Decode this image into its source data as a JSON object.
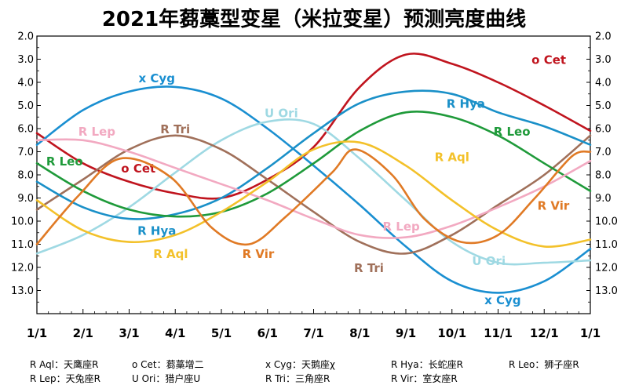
{
  "chart_data": {
    "type": "line",
    "title": "2021年蒭藁型变星（米拉变星）预测亮度曲线",
    "xlabel": "",
    "ylabel": "",
    "ylim": [
      14.0,
      2.0
    ],
    "y_inverted": true,
    "grid": false,
    "x_ticks": [
      "1/1",
      "2/1",
      "3/1",
      "4/1",
      "5/1",
      "6/1",
      "7/1",
      "8/1",
      "9/1",
      "10/1",
      "11/1",
      "12/1",
      "1/1"
    ],
    "y_ticks": [
      "2.0",
      "3.0",
      "4.0",
      "5.0",
      "6.0",
      "7.0",
      "8.0",
      "9.0",
      "10.0",
      "11.0",
      "12.0",
      "13.0"
    ],
    "series": [
      {
        "name": "o Cet",
        "color": "#c0141e",
        "points": [
          [
            0,
            6.2
          ],
          [
            1,
            7.5
          ],
          [
            2,
            8.3
          ],
          [
            3,
            8.8
          ],
          [
            4,
            9.0
          ],
          [
            5,
            8.2
          ],
          [
            6,
            6.8
          ],
          [
            7,
            4.2
          ],
          [
            8,
            2.8
          ],
          [
            9,
            3.2
          ],
          [
            10,
            4.0
          ],
          [
            11,
            5.0
          ],
          [
            12,
            6.1
          ]
        ],
        "labels": [
          [
            11.1,
            3.2
          ],
          [
            2.2,
            7.9
          ]
        ]
      },
      {
        "name": "x Cyg",
        "color": "#1a8fd1",
        "points": [
          [
            0,
            6.7
          ],
          [
            1,
            5.2
          ],
          [
            2,
            4.4
          ],
          [
            3,
            4.2
          ],
          [
            4,
            4.7
          ],
          [
            5,
            6.0
          ],
          [
            6,
            7.6
          ],
          [
            7,
            9.3
          ],
          [
            8,
            11.1
          ],
          [
            9,
            12.6
          ],
          [
            10,
            13.1
          ],
          [
            11,
            12.6
          ],
          [
            12,
            11.2
          ]
        ],
        "labels": [
          [
            2.6,
            4.0
          ],
          [
            10.1,
            13.6
          ]
        ]
      },
      {
        "name": "U Ori",
        "color": "#9fd9e3",
        "points": [
          [
            0,
            11.4
          ],
          [
            1,
            10.6
          ],
          [
            2,
            9.4
          ],
          [
            3,
            7.9
          ],
          [
            4,
            6.5
          ],
          [
            5,
            5.7
          ],
          [
            6,
            5.8
          ],
          [
            7,
            7.3
          ],
          [
            8,
            9.1
          ],
          [
            9,
            10.9
          ],
          [
            10,
            11.8
          ],
          [
            11,
            11.8
          ],
          [
            12,
            11.7
          ]
        ],
        "labels": [
          [
            5.3,
            5.5
          ],
          [
            9.8,
            11.9
          ]
        ]
      },
      {
        "name": "R Tri",
        "color": "#a0705a",
        "points": [
          [
            0,
            9.5
          ],
          [
            1,
            8.2
          ],
          [
            2,
            6.9
          ],
          [
            3,
            6.3
          ],
          [
            4,
            6.9
          ],
          [
            5,
            8.2
          ],
          [
            6,
            9.6
          ],
          [
            7,
            10.9
          ],
          [
            8,
            11.4
          ],
          [
            9,
            10.6
          ],
          [
            10,
            9.3
          ],
          [
            11,
            8.0
          ],
          [
            12,
            6.3
          ]
        ],
        "labels": [
          [
            3.0,
            6.2
          ],
          [
            7.2,
            12.2
          ]
        ]
      },
      {
        "name": "R Hya",
        "color": "#1a90c8",
        "points": [
          [
            0,
            8.3
          ],
          [
            1,
            9.4
          ],
          [
            2,
            9.9
          ],
          [
            3,
            9.7
          ],
          [
            4,
            9.0
          ],
          [
            5,
            7.7
          ],
          [
            6,
            6.2
          ],
          [
            7,
            4.9
          ],
          [
            8,
            4.4
          ],
          [
            9,
            4.5
          ],
          [
            10,
            5.3
          ],
          [
            11,
            5.9
          ],
          [
            12,
            6.7
          ]
        ],
        "labels": [
          [
            2.6,
            10.6
          ],
          [
            9.3,
            5.1
          ]
        ]
      },
      {
        "name": "R Leo",
        "color": "#1f9a3a",
        "points": [
          [
            0,
            7.5
          ],
          [
            1,
            8.7
          ],
          [
            2,
            9.5
          ],
          [
            3,
            9.8
          ],
          [
            4,
            9.6
          ],
          [
            5,
            8.8
          ],
          [
            6,
            7.5
          ],
          [
            7,
            6.1
          ],
          [
            8,
            5.3
          ],
          [
            9,
            5.5
          ],
          [
            10,
            6.3
          ],
          [
            11,
            7.5
          ],
          [
            12,
            8.7
          ]
        ],
        "labels": [
          [
            0.6,
            7.6
          ],
          [
            10.3,
            6.3
          ]
        ]
      },
      {
        "name": "R Lep",
        "color": "#f2a9c1",
        "points": [
          [
            0,
            6.5
          ],
          [
            1,
            6.5
          ],
          [
            2,
            7.0
          ],
          [
            3,
            7.7
          ],
          [
            4,
            8.4
          ],
          [
            5,
            9.1
          ],
          [
            6,
            9.9
          ],
          [
            7,
            10.6
          ],
          [
            8,
            10.7
          ],
          [
            9,
            10.2
          ],
          [
            10,
            9.4
          ],
          [
            11,
            8.5
          ],
          [
            12,
            7.4
          ]
        ],
        "labels": [
          [
            1.3,
            6.3
          ],
          [
            7.9,
            10.4
          ]
        ]
      },
      {
        "name": "R Aql",
        "color": "#f3c12a",
        "points": [
          [
            0,
            9.1
          ],
          [
            1,
            10.4
          ],
          [
            2,
            10.9
          ],
          [
            3,
            10.6
          ],
          [
            4,
            9.6
          ],
          [
            5,
            8.3
          ],
          [
            6,
            6.9
          ],
          [
            7,
            6.6
          ],
          [
            8,
            7.6
          ],
          [
            9,
            9.1
          ],
          [
            10,
            10.4
          ],
          [
            11,
            11.1
          ],
          [
            12,
            10.8
          ]
        ],
        "labels": [
          [
            2.9,
            11.6
          ],
          [
            9.0,
            7.4
          ]
        ]
      },
      {
        "name": "R Vir",
        "color": "#e07a25",
        "points": [
          [
            0,
            11.0
          ],
          [
            0.9,
            8.9
          ],
          [
            1.8,
            7.3
          ],
          [
            2.9,
            8.1
          ],
          [
            3.8,
            10.3
          ],
          [
            4.6,
            11.0
          ],
          [
            5.4,
            9.8
          ],
          [
            6.4,
            7.9
          ],
          [
            6.9,
            6.9
          ],
          [
            7.7,
            8.0
          ],
          [
            8.4,
            9.9
          ],
          [
            9.2,
            10.9
          ],
          [
            10.0,
            10.6
          ],
          [
            10.8,
            9.0
          ],
          [
            11.6,
            7.2
          ],
          [
            12,
            7.0
          ]
        ],
        "labels": [
          [
            4.8,
            11.6
          ],
          [
            11.2,
            9.5
          ]
        ]
      }
    ]
  },
  "legend": [
    {
      "key": "R Aql",
      "text": "天鹰座R"
    },
    {
      "key": "o Cet",
      "text": "蒭藁增二"
    },
    {
      "key": "x Cyg",
      "text": "天鹅座χ"
    },
    {
      "key": "R Hya",
      "text": "长蛇座R"
    },
    {
      "key": "R Leo",
      "text": "狮子座R"
    },
    {
      "key": "R Lep",
      "text": "天兔座R"
    },
    {
      "key": "U Ori",
      "text": "猎户座U"
    },
    {
      "key": "R Tri",
      "text": "三角座R"
    },
    {
      "key": "R Vir",
      "text": "室女座R"
    }
  ]
}
